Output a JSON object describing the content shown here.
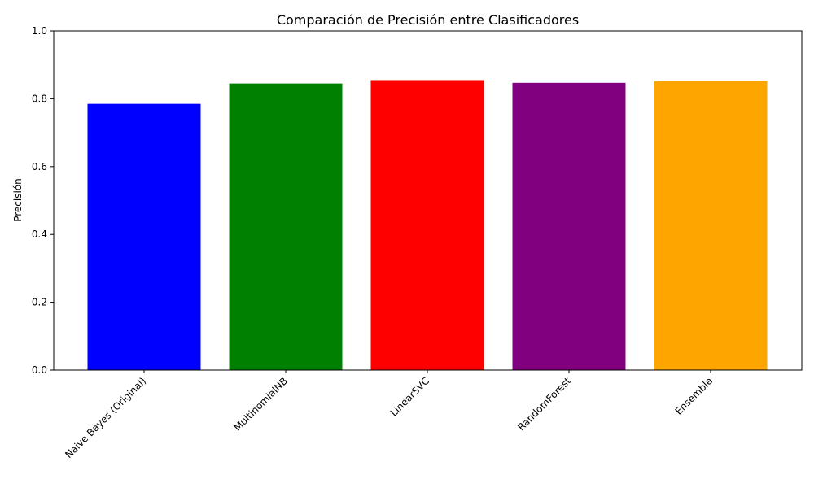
{
  "chart_data": {
    "type": "bar",
    "title": "Comparación de Precisión entre Clasificadores",
    "xlabel": "",
    "ylabel": "Precisión",
    "categories": [
      "Naive Bayes (Original)",
      "MultinomialNB",
      "LinearSVC",
      "RandomForest",
      "Ensemble"
    ],
    "values": [
      0.785,
      0.845,
      0.855,
      0.847,
      0.852
    ],
    "colors": [
      "#0000ff",
      "#008000",
      "#ff0000",
      "#800080",
      "#ffa500"
    ],
    "ylim": [
      0,
      1.0
    ],
    "yticks": [
      "0.0",
      "0.2",
      "0.4",
      "0.6",
      "0.8",
      "1.0"
    ],
    "grid": false,
    "legend": "none"
  }
}
